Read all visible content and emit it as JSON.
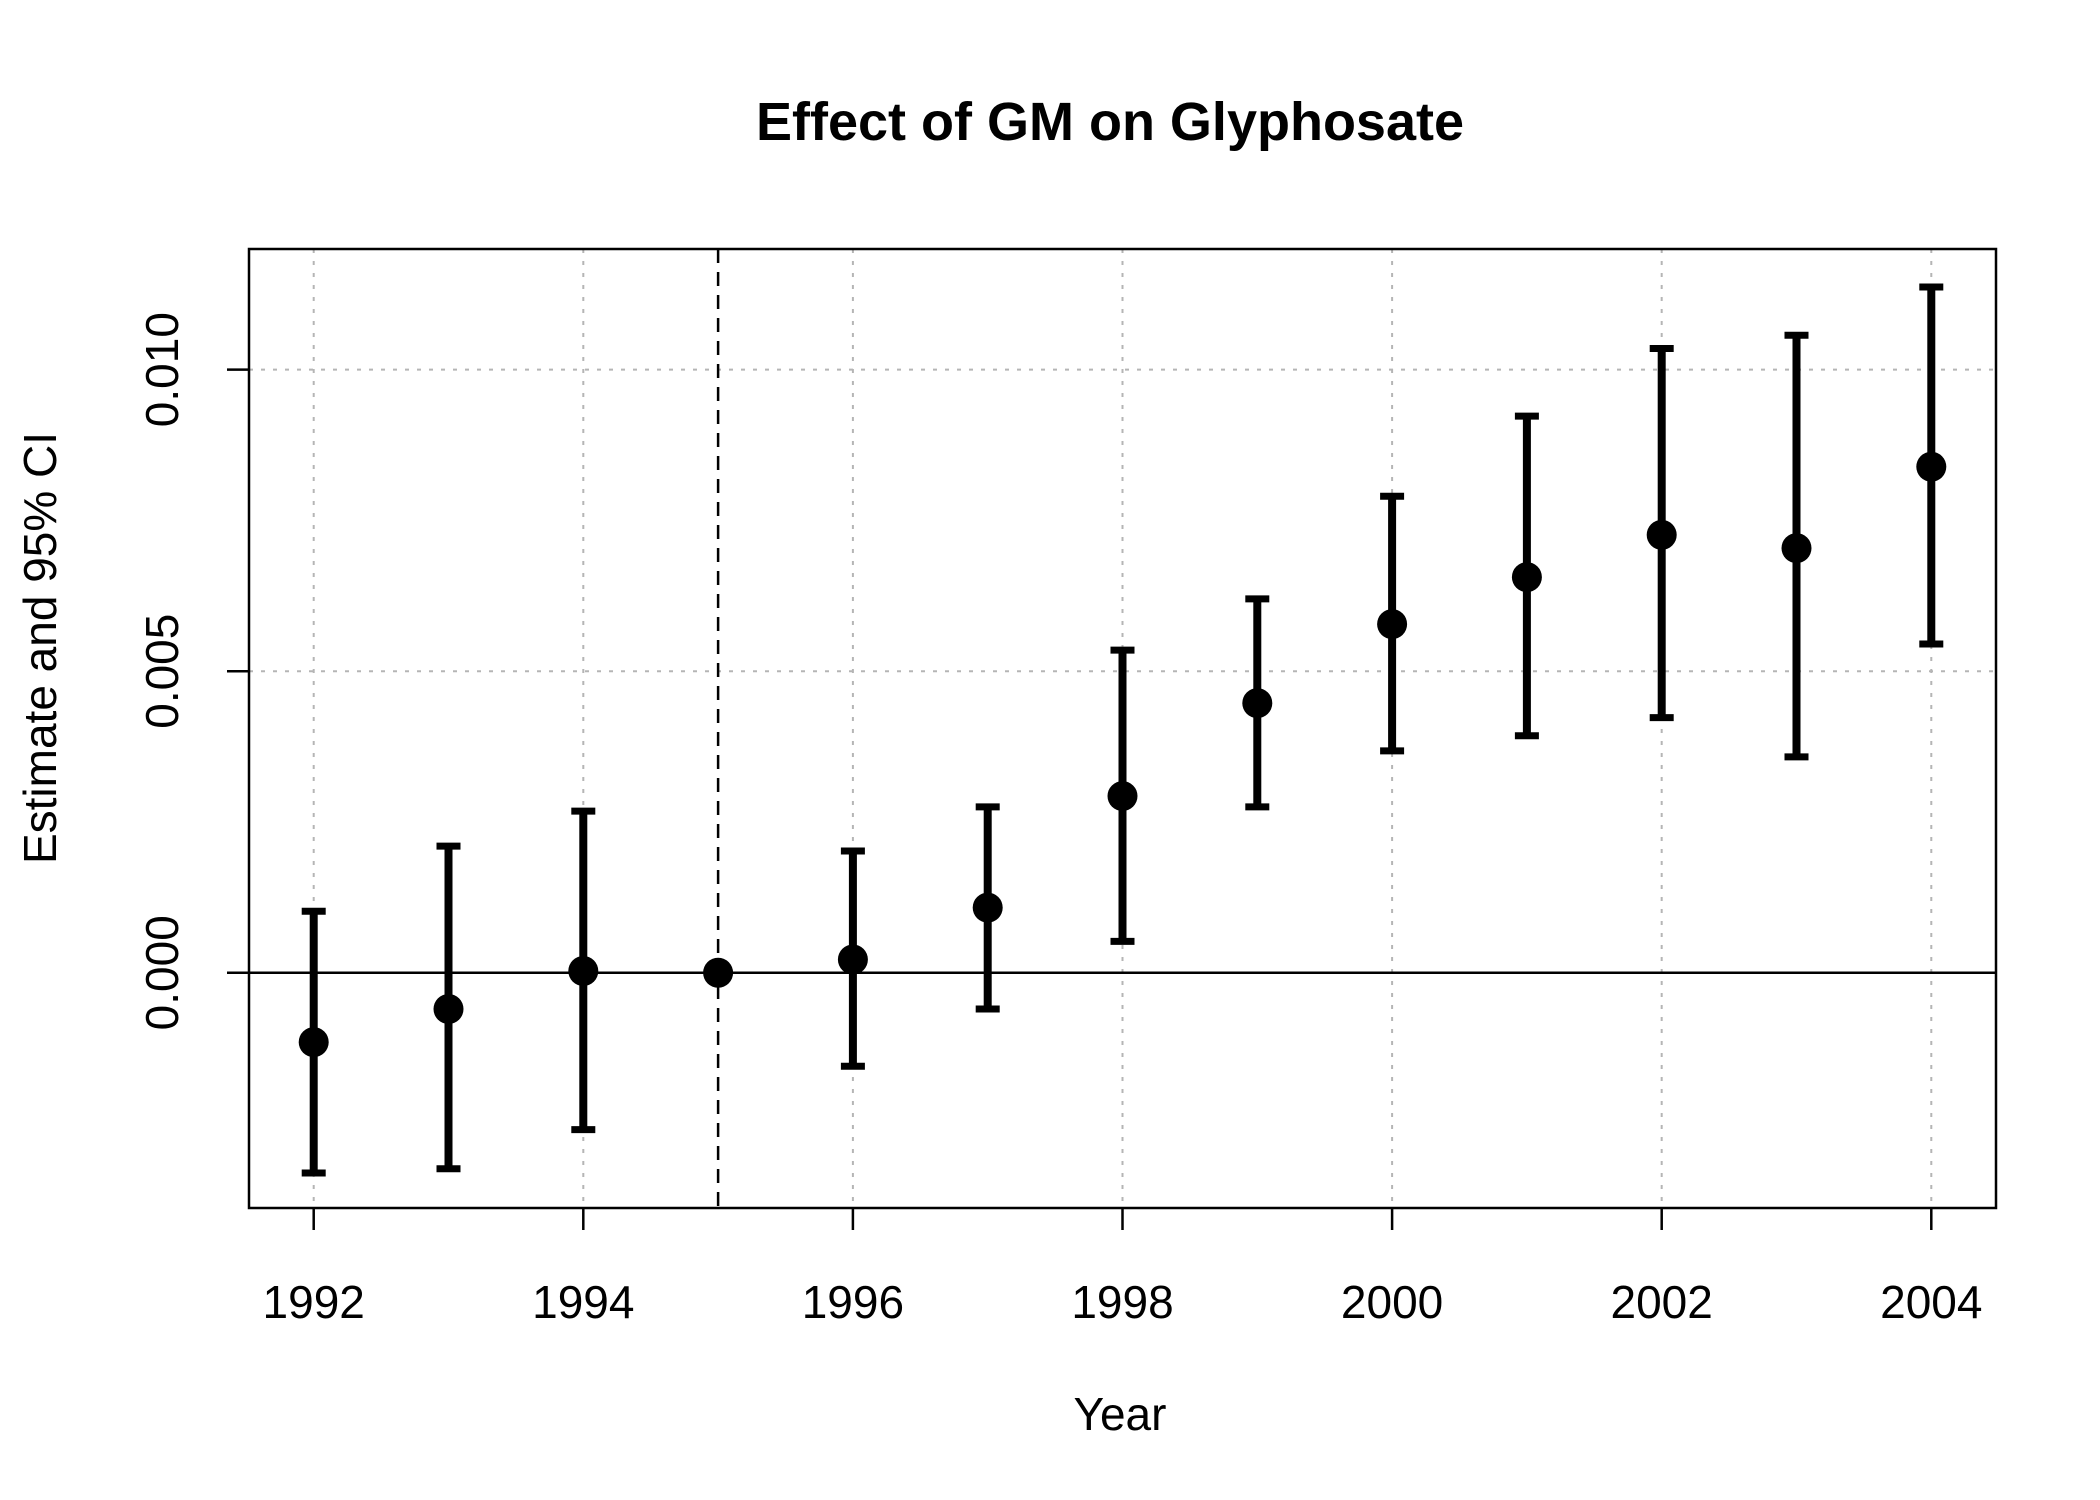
{
  "chart_data": {
    "type": "scatter",
    "title": "Effect of GM on Glyphosate",
    "xlabel": "Year",
    "ylabel": "Estimate and 95% CI",
    "xlim": [
      1991.52,
      2004.48
    ],
    "ylim": [
      -0.0039,
      0.012
    ],
    "x_ticks": [
      1992,
      1994,
      1996,
      1998,
      2000,
      2002,
      2004
    ],
    "x_tick_labels": [
      "1992",
      "1994",
      "1996",
      "1998",
      "2000",
      "2002",
      "2004"
    ],
    "y_ticks": [
      0.0,
      0.005,
      0.01
    ],
    "y_tick_labels": [
      "0.000",
      "0.005",
      "0.010"
    ],
    "grid": true,
    "reference_hline_y": 0,
    "reference_vline_x": 1995,
    "series": [
      {
        "x": [
          1992,
          1993,
          1994,
          1995,
          1996,
          1997,
          1998,
          1999,
          2000,
          2001,
          2002,
          2003,
          2004
        ],
        "estimate": [
          -0.00115,
          -0.0006,
          3e-05,
          0.0,
          0.00022,
          0.00108,
          0.00293,
          0.00447,
          0.00578,
          0.00656,
          0.00726,
          0.00704,
          0.00839
        ],
        "ci_lower": [
          -0.00332,
          -0.00325,
          -0.0026,
          null,
          -0.00155,
          -0.0006,
          0.00052,
          0.00275,
          0.00368,
          0.00393,
          0.00423,
          0.00358,
          0.00545
        ],
        "ci_upper": [
          0.00102,
          0.0021,
          0.00268,
          null,
          0.00202,
          0.00275,
          0.00535,
          0.0062,
          0.0079,
          0.00923,
          0.01035,
          0.01057,
          0.01137
        ]
      }
    ]
  }
}
